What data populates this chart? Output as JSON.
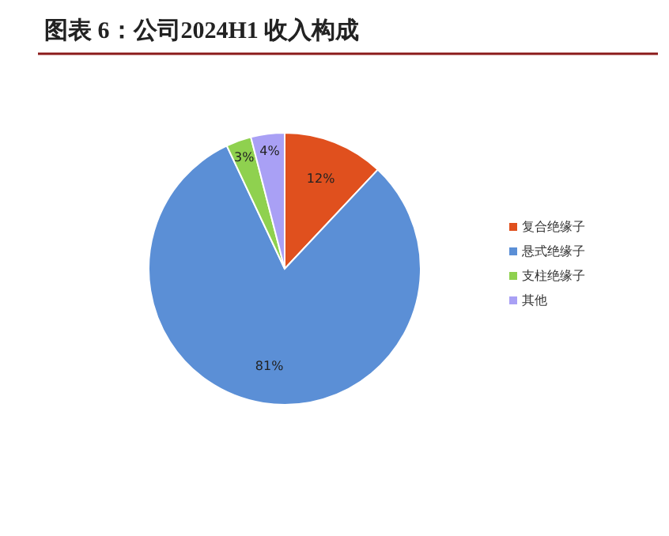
{
  "chart_data": {
    "type": "pie",
    "title": "图表 6：公司2024H1 收入构成",
    "categories": [
      "复合绝缘子",
      "悬式绝缘子",
      "支柱绝缘子",
      "其他"
    ],
    "values": [
      12,
      81,
      3,
      4
    ],
    "colors": [
      "#e0501e",
      "#5b8fd6",
      "#8fd14f",
      "#a9a0f5"
    ],
    "value_labels": [
      "12%",
      "81%",
      "3%",
      "4%"
    ],
    "legend": "right"
  }
}
